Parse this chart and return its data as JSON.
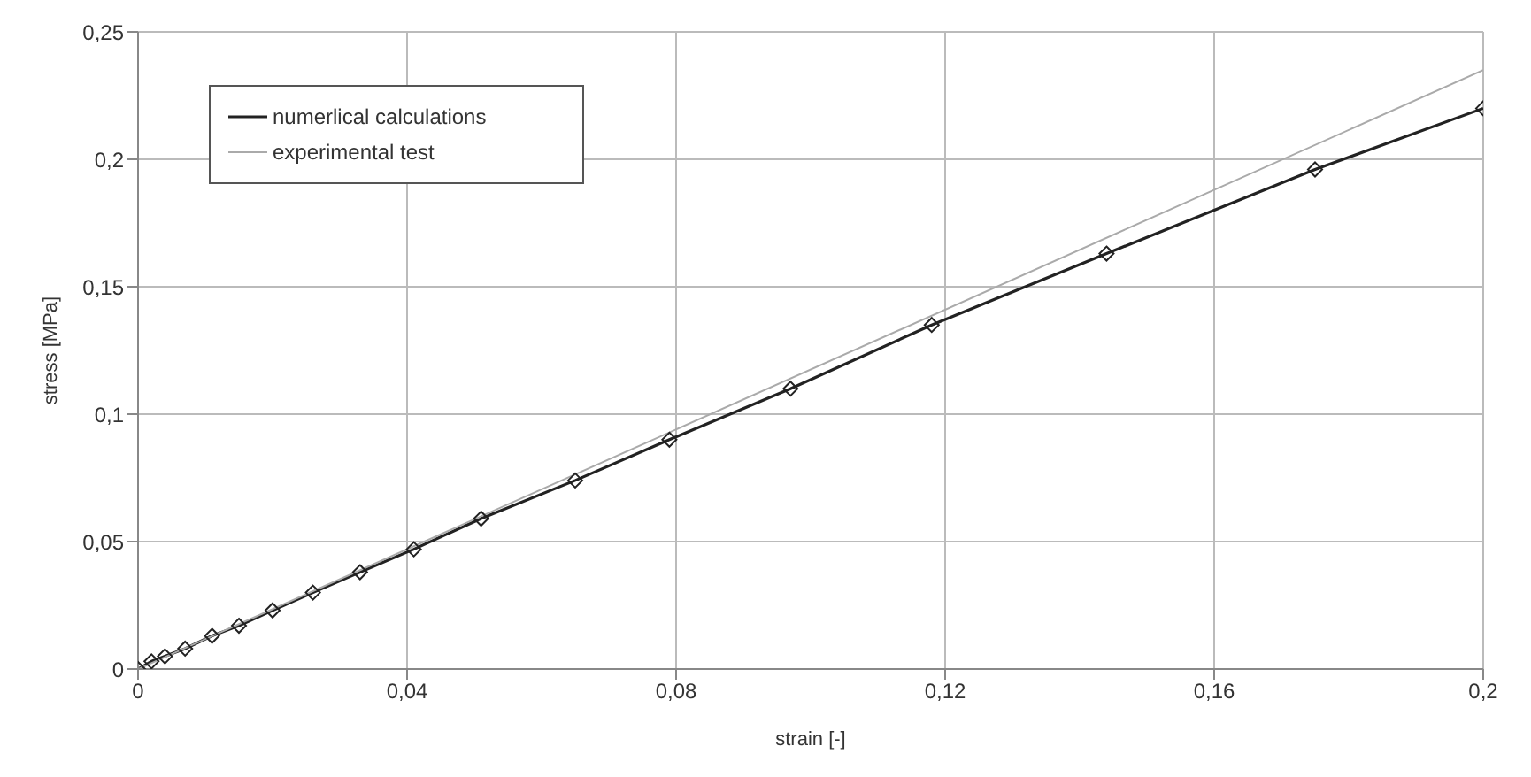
{
  "chart_data": {
    "type": "line",
    "xlabel": "strain [-]",
    "ylabel": "stress [MPa]",
    "xlim": [
      0,
      0.2
    ],
    "ylim": [
      0,
      0.25
    ],
    "xticks": [
      {
        "value": 0,
        "label": "0"
      },
      {
        "value": 0.04,
        "label": "0,04"
      },
      {
        "value": 0.08,
        "label": "0,08"
      },
      {
        "value": 0.12,
        "label": "0,12"
      },
      {
        "value": 0.16,
        "label": "0,16"
      },
      {
        "value": 0.2,
        "label": "0,2"
      }
    ],
    "yticks": [
      {
        "value": 0,
        "label": "0"
      },
      {
        "value": 0.05,
        "label": "0,05"
      },
      {
        "value": 0.1,
        "label": "0,1"
      },
      {
        "value": 0.15,
        "label": "0,15"
      },
      {
        "value": 0.2,
        "label": "0,2"
      },
      {
        "value": 0.25,
        "label": "0,25"
      }
    ],
    "grid": true,
    "legend": "top left",
    "line_style": "solid",
    "series": [
      {
        "name": "numerlical calculations",
        "color": "#222222",
        "marker": "diamond",
        "x": [
          0,
          0.002,
          0.004,
          0.007,
          0.011,
          0.015,
          0.02,
          0.026,
          0.033,
          0.041,
          0.051,
          0.065,
          0.079,
          0.097,
          0.118,
          0.144,
          0.175,
          0.2
        ],
        "values": [
          0,
          0.003,
          0.005,
          0.008,
          0.013,
          0.017,
          0.023,
          0.03,
          0.038,
          0.047,
          0.059,
          0.074,
          0.09,
          0.11,
          0.135,
          0.163,
          0.196,
          0.22
        ]
      },
      {
        "name": "experimental test",
        "color": "#aaaaaa",
        "marker": "none",
        "x": [
          0,
          0.2
        ],
        "values": [
          0,
          0.235
        ]
      }
    ]
  }
}
